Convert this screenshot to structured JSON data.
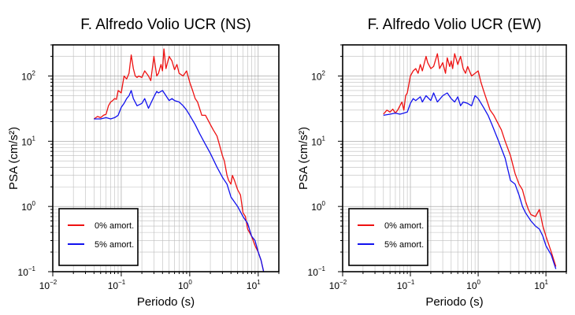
{
  "chart_data": [
    {
      "type": "line",
      "title": "F. Alfredo Volio UCR (NS)",
      "xlabel": "Periodo (s)",
      "ylabel": "PSA (cm/s²)",
      "xscale": "log",
      "yscale": "log",
      "xlim": [
        0.01,
        20
      ],
      "ylim": [
        0.1,
        300
      ],
      "grid": true,
      "legend": "bottom-left",
      "x_ticks": [
        {
          "base": "10",
          "exp": "−2",
          "value": 0.01
        },
        {
          "base": "10",
          "exp": "−1",
          "value": 0.1
        },
        {
          "base": "10",
          "exp": "0",
          "value": 1
        },
        {
          "base": "10",
          "exp": "1",
          "value": 10
        }
      ],
      "y_ticks": [
        {
          "base": "10",
          "exp": "−1",
          "value": 0.1
        },
        {
          "base": "10",
          "exp": "0",
          "value": 1
        },
        {
          "base": "10",
          "exp": "1",
          "value": 10
        },
        {
          "base": "10",
          "exp": "2",
          "value": 100
        }
      ],
      "series": [
        {
          "name": "0% amort.",
          "color": "#ee1111",
          "x": [
            0.04,
            0.045,
            0.05,
            0.055,
            0.06,
            0.065,
            0.07,
            0.075,
            0.08,
            0.085,
            0.09,
            0.1,
            0.11,
            0.12,
            0.13,
            0.14,
            0.15,
            0.16,
            0.17,
            0.18,
            0.2,
            0.22,
            0.25,
            0.27,
            0.3,
            0.33,
            0.35,
            0.38,
            0.4,
            0.42,
            0.45,
            0.5,
            0.55,
            0.6,
            0.65,
            0.7,
            0.8,
            0.9,
            1.0,
            1.1,
            1.2,
            1.3,
            1.5,
            1.7,
            2.0,
            2.2,
            2.5,
            2.7,
            3.0,
            3.2,
            3.5,
            3.7,
            4.0,
            4.2,
            4.5,
            5.0,
            5.5,
            6.0,
            6.5,
            7.0,
            8.0,
            9.0,
            10.0,
            11.0,
            12.0
          ],
          "y": [
            22,
            24,
            23,
            25,
            26,
            35,
            40,
            42,
            45,
            44,
            60,
            55,
            100,
            90,
            110,
            210,
            130,
            100,
            95,
            100,
            95,
            120,
            100,
            85,
            200,
            100,
            110,
            150,
            120,
            260,
            130,
            200,
            170,
            125,
            150,
            110,
            100,
            120,
            80,
            60,
            45,
            40,
            25,
            25,
            18,
            15,
            12,
            9,
            6,
            5,
            3,
            2.5,
            2.2,
            3,
            2.5,
            1.8,
            1.5,
            0.8,
            0.7,
            0.45,
            0.35,
            0.25,
            0.2,
            0.15,
            0.1
          ]
        },
        {
          "name": "5% amort.",
          "color": "#1111ee",
          "x": [
            0.04,
            0.05,
            0.06,
            0.07,
            0.08,
            0.09,
            0.1,
            0.11,
            0.12,
            0.13,
            0.14,
            0.15,
            0.17,
            0.2,
            0.22,
            0.25,
            0.3,
            0.33,
            0.35,
            0.4,
            0.45,
            0.5,
            0.55,
            0.6,
            0.7,
            0.8,
            0.9,
            1.0,
            1.2,
            1.4,
            1.6,
            2.0,
            2.5,
            3.0,
            3.5,
            4.0,
            5.0,
            6.0,
            7.0,
            8.0,
            9.0,
            10.0,
            11.0,
            12.0
          ],
          "y": [
            22,
            22,
            23,
            22,
            23,
            25,
            33,
            38,
            45,
            50,
            60,
            45,
            35,
            38,
            45,
            32,
            48,
            58,
            55,
            60,
            50,
            42,
            45,
            42,
            40,
            35,
            30,
            25,
            18,
            13,
            10,
            6.5,
            4,
            2.8,
            2.2,
            1.4,
            1,
            0.7,
            0.55,
            0.35,
            0.3,
            0.2,
            0.15,
            0.1
          ]
        }
      ]
    },
    {
      "type": "line",
      "title": "F. Alfredo Volio UCR (EW)",
      "xlabel": "Periodo (s)",
      "ylabel": "PSA (cm/s²)",
      "xscale": "log",
      "yscale": "log",
      "xlim": [
        0.01,
        20
      ],
      "ylim": [
        0.1,
        300
      ],
      "grid": true,
      "legend": "bottom-left",
      "x_ticks": [
        {
          "base": "10",
          "exp": "−2",
          "value": 0.01
        },
        {
          "base": "10",
          "exp": "−1",
          "value": 0.1
        },
        {
          "base": "10",
          "exp": "0",
          "value": 1
        },
        {
          "base": "10",
          "exp": "1",
          "value": 10
        }
      ],
      "y_ticks": [
        {
          "base": "10",
          "exp": "−1",
          "value": 0.1
        },
        {
          "base": "10",
          "exp": "0",
          "value": 1
        },
        {
          "base": "10",
          "exp": "1",
          "value": 10
        },
        {
          "base": "10",
          "exp": "2",
          "value": 100
        }
      ],
      "series": [
        {
          "name": "0% amort.",
          "color": "#ee1111",
          "x": [
            0.04,
            0.045,
            0.05,
            0.055,
            0.06,
            0.065,
            0.07,
            0.075,
            0.08,
            0.085,
            0.09,
            0.1,
            0.11,
            0.12,
            0.13,
            0.14,
            0.15,
            0.17,
            0.18,
            0.2,
            0.22,
            0.25,
            0.27,
            0.3,
            0.33,
            0.35,
            0.38,
            0.4,
            0.42,
            0.45,
            0.5,
            0.55,
            0.6,
            0.65,
            0.7,
            0.8,
            0.9,
            1.0,
            1.1,
            1.2,
            1.5,
            1.7,
            2.0,
            2.2,
            2.5,
            3.0,
            3.5,
            4.0,
            4.5,
            5.0,
            5.5,
            6.0,
            7.0,
            8.0,
            9.0,
            10.0,
            12.0,
            14.0
          ],
          "y": [
            26,
            30,
            28,
            31,
            27,
            30,
            35,
            40,
            30,
            50,
            55,
            100,
            120,
            130,
            110,
            150,
            120,
            200,
            160,
            130,
            140,
            220,
            130,
            160,
            110,
            190,
            140,
            170,
            130,
            220,
            150,
            200,
            130,
            110,
            140,
            100,
            110,
            120,
            80,
            60,
            30,
            25,
            18,
            15,
            10,
            6,
            3.2,
            2.2,
            1.8,
            1.2,
            0.9,
            0.75,
            0.7,
            0.9,
            0.5,
            0.35,
            0.2,
            0.12
          ]
        },
        {
          "name": "5% amort.",
          "color": "#1111ee",
          "x": [
            0.04,
            0.05,
            0.06,
            0.07,
            0.08,
            0.09,
            0.1,
            0.11,
            0.12,
            0.14,
            0.15,
            0.17,
            0.2,
            0.22,
            0.25,
            0.3,
            0.35,
            0.4,
            0.45,
            0.5,
            0.55,
            0.6,
            0.7,
            0.8,
            0.9,
            1.0,
            1.2,
            1.4,
            1.6,
            2.0,
            2.5,
            3.0,
            3.5,
            4.0,
            4.5,
            5.0,
            6.0,
            7.0,
            8.0,
            9.0,
            10.0,
            12.0,
            14.0
          ],
          "y": [
            25,
            26,
            27,
            26,
            27,
            28,
            38,
            45,
            42,
            48,
            40,
            50,
            42,
            55,
            40,
            50,
            55,
            45,
            40,
            48,
            35,
            40,
            38,
            35,
            50,
            45,
            33,
            25,
            18,
            10,
            5.5,
            2.5,
            2.2,
            1.5,
            1.0,
            0.8,
            0.6,
            0.5,
            0.45,
            0.35,
            0.25,
            0.18,
            0.11
          ]
        }
      ]
    }
  ]
}
